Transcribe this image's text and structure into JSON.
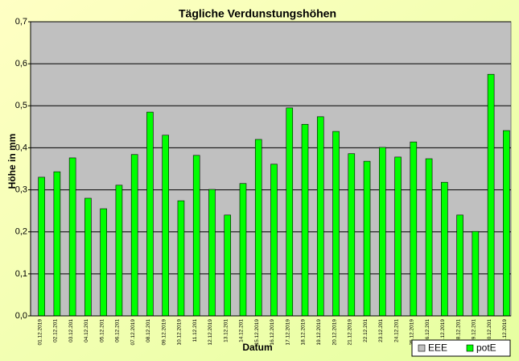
{
  "chart_data": {
    "type": "bar",
    "title": "Tägliche Verdunstungshöhen",
    "x_label": "Datum",
    "y_label": "Höhe in mm",
    "categories": [
      "01.12.2019",
      "02.12.201",
      "03.12.201",
      "04.12.201",
      "05.12.201",
      "06.12.201",
      "07.12.2019",
      "08.12.201",
      "09.12.2019",
      "10.12.2019",
      "11.12.201",
      "12.12.2019",
      "13.12.201",
      "14.12.201",
      "15.12.2019",
      "16.12.2019",
      "17.12.2019",
      "18.12.2019",
      "19.12.2019",
      "20.12.2019",
      "21.12.2019",
      "22.12.201",
      "23.12.201",
      "24.12.201",
      "25.12.2019",
      "26.12.201",
      "27.12.2019",
      "28.12.201",
      "29.12.201",
      "30.12.201",
      "31.12.2019"
    ],
    "series": [
      {
        "name": "EEE",
        "color": "#c0c0c0",
        "values": [
          null,
          null,
          null,
          null,
          null,
          null,
          null,
          null,
          null,
          null,
          null,
          null,
          null,
          null,
          null,
          null,
          null,
          null,
          null,
          null,
          null,
          null,
          null,
          null,
          null,
          null,
          null,
          null,
          null,
          null,
          null
        ]
      },
      {
        "name": "potE",
        "color": "#00ff00",
        "values": [
          0.33,
          0.343,
          0.376,
          0.28,
          0.255,
          0.311,
          0.384,
          0.485,
          0.43,
          0.274,
          0.382,
          0.301,
          0.24,
          0.315,
          0.42,
          0.361,
          0.495,
          0.456,
          0.474,
          0.439,
          0.386,
          0.368,
          0.401,
          0.378,
          0.414,
          0.374,
          0.318,
          0.24,
          0.201,
          0.575,
          0.441
        ]
      }
    ],
    "ylim": [
      0,
      0.7
    ],
    "yticks": [
      {
        "value": 0,
        "label": "0,0"
      },
      {
        "value": 0.1,
        "label": "0,1"
      },
      {
        "value": 0.2,
        "label": "0,2"
      },
      {
        "value": 0.3,
        "label": "0,3"
      },
      {
        "value": 0.4,
        "label": "0,4"
      },
      {
        "value": 0.5,
        "label": "0,5"
      },
      {
        "value": 0.6,
        "label": "0,6"
      },
      {
        "value": 0.7,
        "label": "0,7"
      }
    ],
    "grid": true,
    "legend": "bottom-right"
  }
}
